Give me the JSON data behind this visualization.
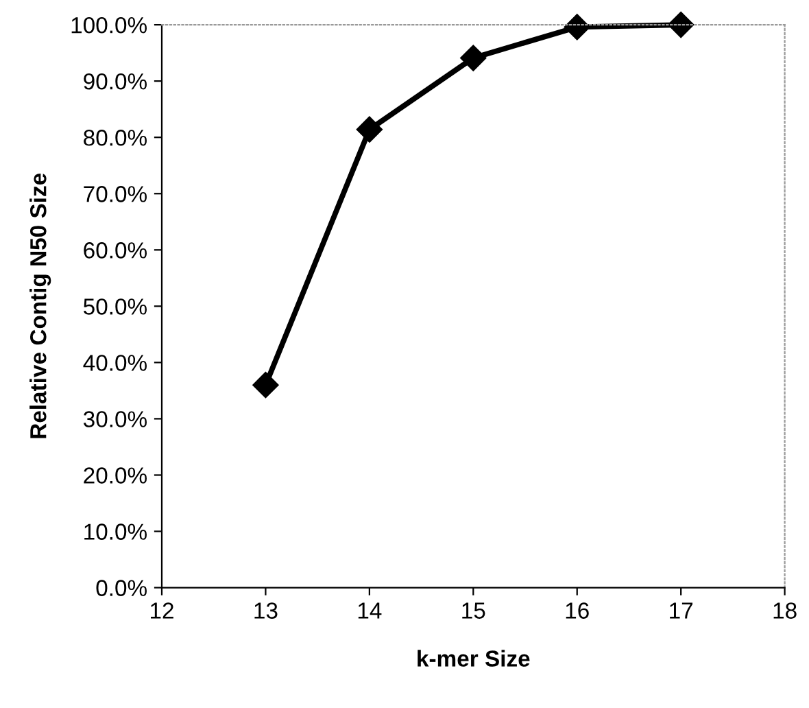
{
  "chart_data": {
    "type": "line",
    "xlabel": "k-mer Size",
    "ylabel": "Relative Contig N50 Size",
    "x": [
      13,
      14,
      15,
      16,
      17
    ],
    "series": [
      {
        "color": "#000000",
        "values": [
          36,
          81.4,
          94.1,
          99.6,
          100
        ]
      }
    ],
    "xlim": [
      12,
      18
    ],
    "xticks": [
      12,
      13,
      14,
      15,
      16,
      17,
      18
    ],
    "ylim": [
      0,
      100
    ],
    "yticks": [
      {
        "value": 0,
        "label": "0.0%"
      },
      {
        "value": 10,
        "label": "10.0%"
      },
      {
        "value": 20,
        "label": "20.0%"
      },
      {
        "value": 30,
        "label": "30.0%"
      },
      {
        "value": 40,
        "label": "40.0%"
      },
      {
        "value": 50,
        "label": "50.0%"
      },
      {
        "value": 60,
        "label": "60.0%"
      },
      {
        "value": 70,
        "label": "70.0%"
      },
      {
        "value": 80,
        "label": "80.0%"
      },
      {
        "value": 90,
        "label": "90.0%"
      },
      {
        "value": 100,
        "label": "100.0%"
      }
    ],
    "marker": "diamond",
    "line_style": "solid",
    "grid": false,
    "legend": false
  }
}
